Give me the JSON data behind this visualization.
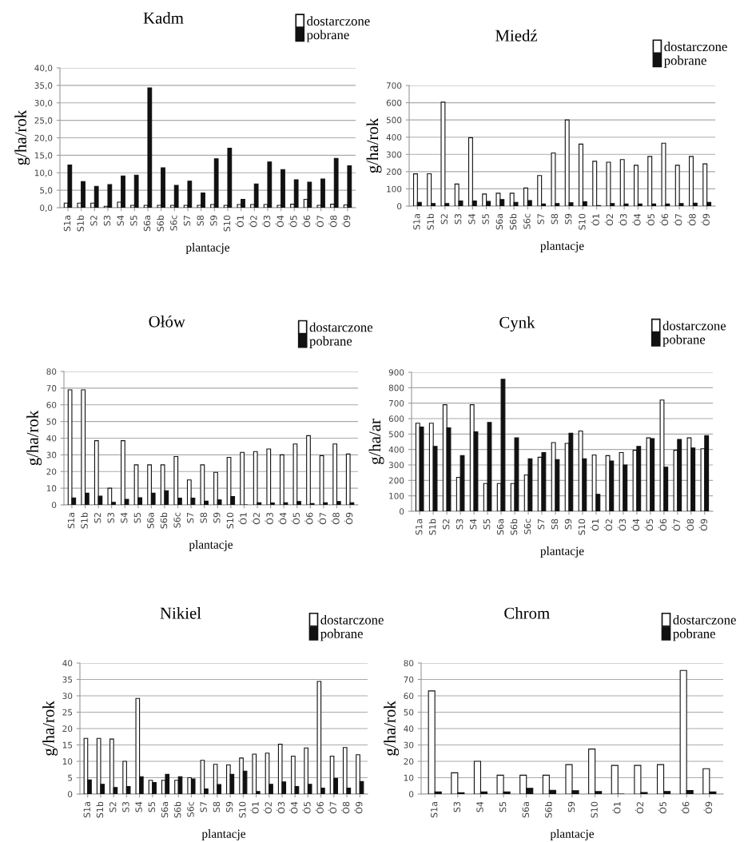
{
  "chart_data": [
    {
      "type": "bar",
      "title": "Kadm",
      "xlabel": "plantacje",
      "ylabel": "g/ha/rok",
      "legend": "top right",
      "grid": "y",
      "categories": [
        "S1a",
        "S1b",
        "S2",
        "S3",
        "S4",
        "S5",
        "S6a",
        "S6b",
        "S6c",
        "S7",
        "S8",
        "S9",
        "S10",
        "Ó1",
        "Ó2",
        "Ó3",
        "Ó4",
        "Ó5",
        "Ó6",
        "Ó7",
        "Ó8",
        "Ó9"
      ],
      "ylim": [
        0,
        40
      ],
      "yticks": [
        {
          "value": 0,
          "label": "0,0"
        },
        {
          "value": 5,
          "label": "5,0"
        },
        {
          "value": 10,
          "label": "10,0"
        },
        {
          "value": 15,
          "label": "15,0"
        },
        {
          "value": 20,
          "label": "20,0"
        },
        {
          "value": 25,
          "label": "25,0"
        },
        {
          "value": 30,
          "label": "30,0"
        },
        {
          "value": 35,
          "label": "35,0"
        },
        {
          "value": 40,
          "label": "40,0"
        }
      ],
      "series": [
        {
          "name": "dostarczone",
          "color": "#ffffff",
          "values": [
            1.3,
            1.3,
            1.3,
            0.4,
            1.6,
            0.7,
            0.7,
            0.7,
            0.7,
            0.7,
            0.7,
            0.9,
            0.7,
            0.9,
            0.9,
            0.9,
            0.7,
            1.0,
            2.4,
            0.7,
            1.0,
            0.8
          ]
        },
        {
          "name": "pobrane",
          "color": "#111111",
          "values": [
            12.2,
            7.5,
            6.1,
            6.6,
            9.1,
            9.3,
            34.3,
            11.4,
            6.4,
            7.6,
            4.2,
            14.0,
            17.0,
            2.4,
            6.8,
            13.1,
            10.9,
            8.0,
            7.3,
            8.2,
            14.1,
            12.0
          ]
        }
      ]
    },
    {
      "type": "bar",
      "title": "Miedź",
      "xlabel": "plantacje",
      "ylabel": "g/ha/rok",
      "legend": "top right",
      "grid": "y",
      "categories": [
        "S1a",
        "S1b",
        "S2",
        "S3",
        "S4",
        "S5",
        "S6a",
        "S6b",
        "S6c",
        "S7",
        "S8",
        "S9",
        "S10",
        "Ó1",
        "Ó2",
        "Ó3",
        "Ó4",
        "Ó5",
        "Ó6",
        "Ó7",
        "Ó8",
        "Ó9"
      ],
      "ylim": [
        0,
        700
      ],
      "yticks": [
        0,
        100,
        200,
        300,
        400,
        500,
        600,
        700
      ],
      "series": [
        {
          "name": "dostarczone",
          "color": "#ffffff",
          "values": [
            187,
            188,
            603,
            128,
            397,
            70,
            75,
            75,
            105,
            177,
            308,
            500,
            360,
            260,
            255,
            270,
            237,
            288,
            365,
            237,
            288,
            245
          ]
        },
        {
          "name": "pobrane",
          "color": "#111111",
          "values": [
            22,
            15,
            15,
            30,
            30,
            27,
            38,
            22,
            32,
            12,
            15,
            20,
            25,
            3,
            15,
            12,
            12,
            12,
            12,
            15,
            17,
            22
          ]
        }
      ]
    },
    {
      "type": "bar",
      "title": "Ołów",
      "xlabel": "plantacje",
      "ylabel": "g/ha/rok",
      "legend": "top right",
      "grid": "y",
      "categories": [
        "S1a",
        "S1b",
        "S2",
        "S3",
        "S4",
        "S5",
        "S6a",
        "S6b",
        "S6c",
        "S7",
        "S8",
        "S9",
        "S10",
        "Ó1",
        "Ó2",
        "Ó3",
        "Ó4",
        "Ó5",
        "Ó6",
        "Ó7",
        "Ó8",
        "Ó9"
      ],
      "ylim": [
        0,
        80
      ],
      "yticks": [
        0,
        10,
        20,
        30,
        40,
        50,
        60,
        70,
        80
      ],
      "series": [
        {
          "name": "dostarczone",
          "color": "#ffffff",
          "values": [
            69,
            69,
            38.5,
            10,
            38.5,
            24,
            24,
            24,
            29,
            15,
            24,
            19.5,
            28.5,
            31.5,
            32,
            33.5,
            30,
            36.5,
            41.5,
            29.5,
            36.5,
            30.5
          ]
        },
        {
          "name": "pobrane",
          "color": "#111111",
          "values": [
            4.2,
            7,
            5.2,
            1.5,
            3.3,
            4.3,
            7,
            8.5,
            4,
            4,
            2.2,
            3,
            5,
            0,
            1.3,
            1.2,
            1.3,
            2,
            0.8,
            1.3,
            2,
            1.3
          ]
        }
      ]
    },
    {
      "type": "bar",
      "title": "Cynk",
      "xlabel": "plantacje",
      "ylabel": "g/ha/ar",
      "legend": "top right",
      "grid": "y",
      "categories": [
        "S1a",
        "S1b",
        "S2",
        "S3",
        "S4",
        "S5",
        "S6a",
        "S6b",
        "S6c",
        "S7",
        "S8",
        "S9",
        "S10",
        "Ó1",
        "Ó2",
        "Ó3",
        "Ó4",
        "Ó5",
        "Ó6",
        "Ó7",
        "Ó8",
        "Ó9"
      ],
      "ylim": [
        0,
        900
      ],
      "yticks": [
        0,
        100,
        200,
        300,
        400,
        500,
        600,
        700,
        800,
        900
      ],
      "series": [
        {
          "name": "dostarczone",
          "color": "#ffffff",
          "values": [
            570,
            570,
            690,
            220,
            690,
            180,
            180,
            180,
            235,
            350,
            445,
            440,
            520,
            365,
            360,
            380,
            395,
            475,
            720,
            395,
            475,
            405
          ]
        },
        {
          "name": "pobrane",
          "color": "#111111",
          "values": [
            545,
            420,
            540,
            360,
            515,
            575,
            855,
            475,
            340,
            380,
            335,
            505,
            340,
            110,
            325,
            300,
            420,
            470,
            285,
            465,
            410,
            490
          ]
        }
      ]
    },
    {
      "type": "bar",
      "title": "Nikiel",
      "xlabel": "plantacje",
      "ylabel": "g/ha/rok",
      "legend": "top right",
      "grid": "y",
      "categories": [
        "S1a",
        "S1b",
        "S2",
        "S3",
        "S4",
        "S5",
        "S6a",
        "S6b",
        "S6c",
        "S7",
        "S8",
        "S9",
        "S10",
        "Ó1",
        "Ó2",
        "Ó3",
        "Ó4",
        "Ó5",
        "Ó6",
        "Ó7",
        "Ó8",
        "Ó9"
      ],
      "ylim": [
        0,
        40
      ],
      "yticks": [
        0,
        5,
        10,
        15,
        20,
        25,
        30,
        35,
        40
      ],
      "series": [
        {
          "name": "dostarczone",
          "color": "#ffffff",
          "values": [
            17,
            17,
            16.8,
            10,
            29.2,
            4.2,
            4.2,
            4.2,
            5,
            10.3,
            9.1,
            8.9,
            11,
            12.2,
            12.5,
            15.2,
            11.6,
            14.1,
            34.4,
            11.6,
            14.2,
            12
          ]
        },
        {
          "name": "pobrane",
          "color": "#111111",
          "values": [
            4.3,
            3,
            2,
            2.3,
            5.3,
            3.5,
            6,
            5.3,
            4.6,
            1.6,
            2.9,
            6,
            7,
            0.8,
            3,
            3.7,
            2.3,
            3,
            1.8,
            4.8,
            1.8,
            3.8
          ]
        }
      ]
    },
    {
      "type": "bar",
      "title": "Chrom",
      "xlabel": "plantacje",
      "ylabel": "g/ha/rok",
      "legend": "top right",
      "grid": "y",
      "categories": [
        "S1a",
        "S3",
        "S4",
        "S5",
        "S6a",
        "S6b",
        "S9",
        "S10",
        "Ó1",
        "Ó2",
        "Ó5",
        "Ó6",
        "Ó9"
      ],
      "ylim": [
        0,
        80
      ],
      "yticks": [
        0,
        10,
        20,
        30,
        40,
        50,
        60,
        70,
        80
      ],
      "series": [
        {
          "name": "dostarczone",
          "color": "#ffffff",
          "values": [
            63,
            13,
            20,
            11.5,
            11.5,
            11.5,
            18,
            27.5,
            17.5,
            17.5,
            18,
            75.5,
            15.5
          ]
        },
        {
          "name": "pobrane",
          "color": "#111111",
          "values": [
            1.3,
            0.8,
            1.3,
            1.3,
            3.5,
            2.3,
            2,
            1.5,
            0,
            1,
            1.6,
            2.2,
            1.3
          ]
        }
      ]
    }
  ]
}
